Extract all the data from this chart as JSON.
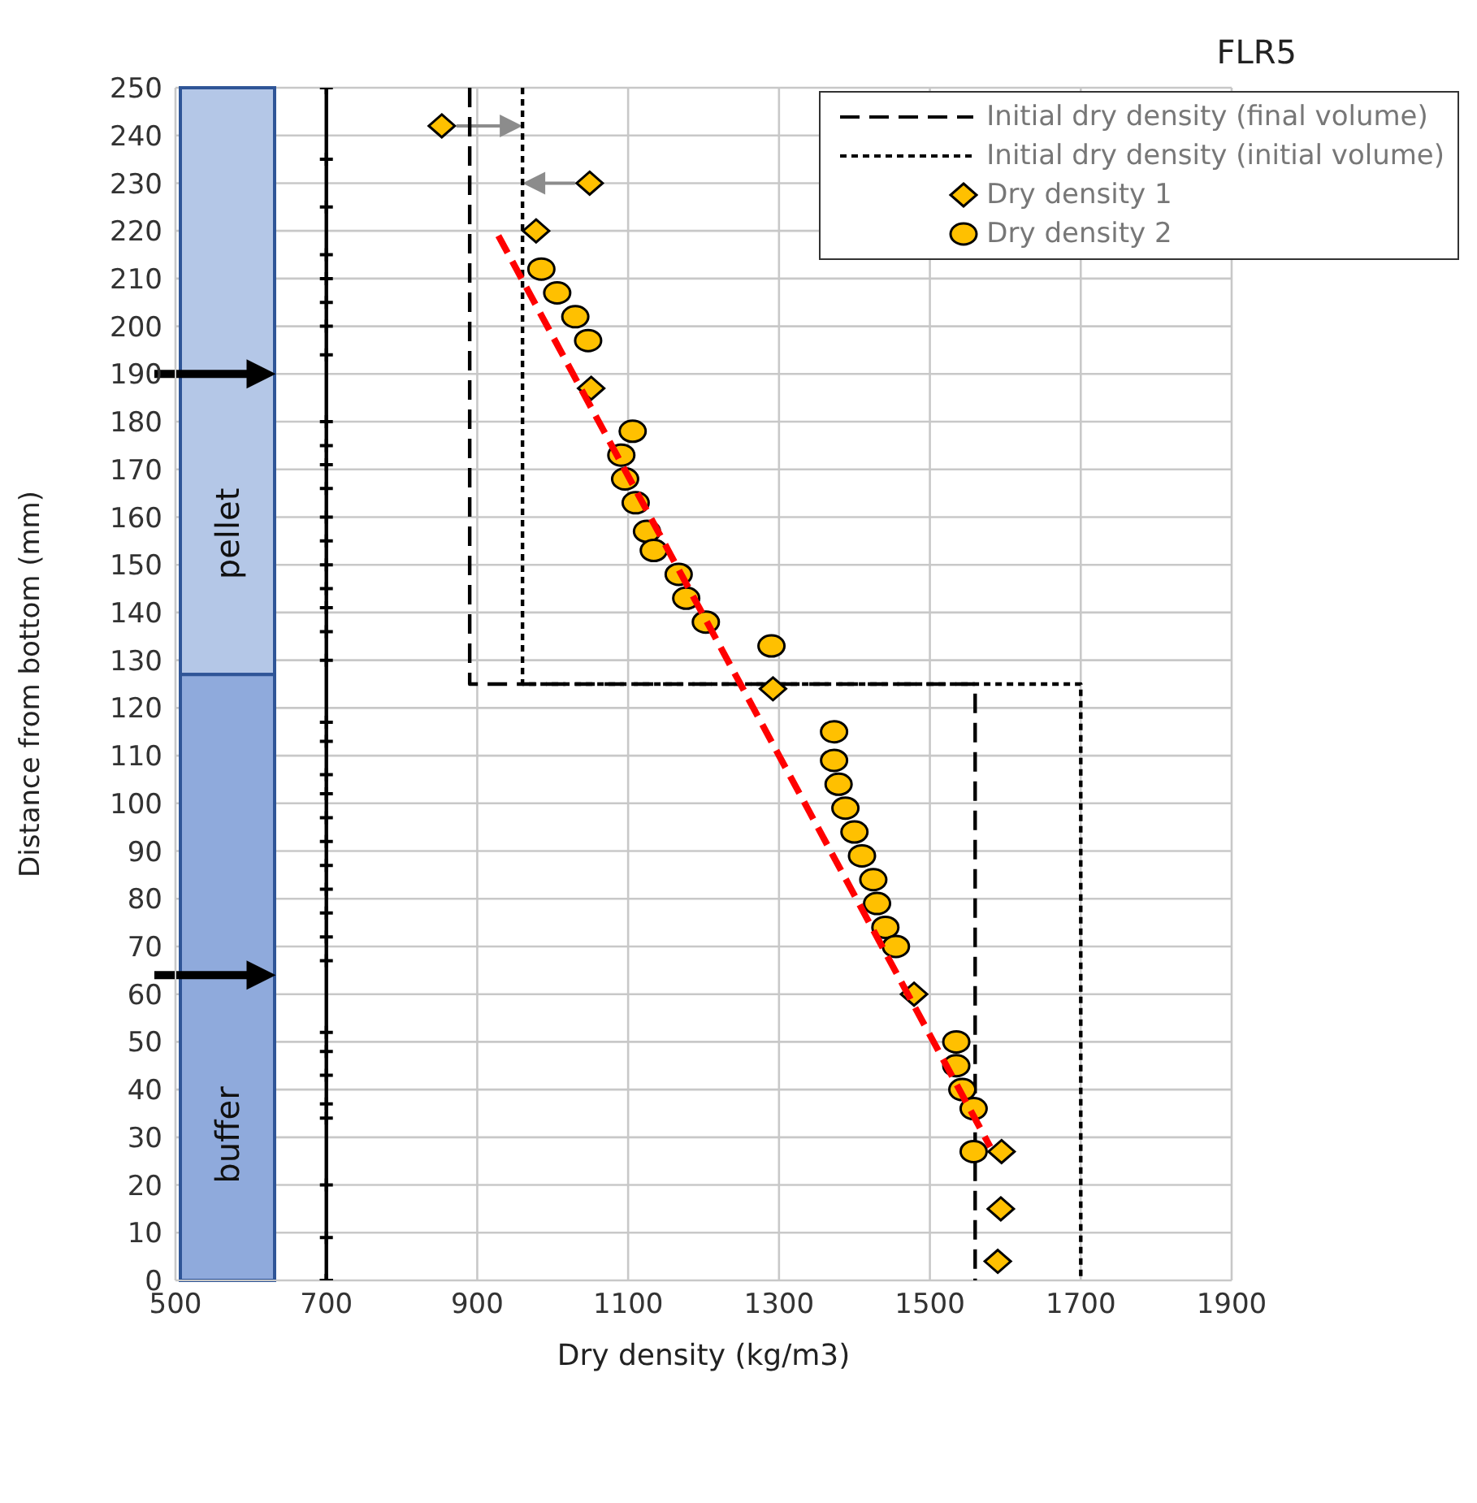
{
  "chart_data": {
    "type": "scatter",
    "title": "FLR5",
    "xlabel": "Dry density (kg/m3)",
    "ylabel": "Distance from bottom (mm)",
    "xlim": [
      500,
      1900
    ],
    "xticks": [
      500,
      700,
      900,
      1100,
      1300,
      1500,
      1700,
      1900
    ],
    "ylim": [
      0,
      250
    ],
    "yticks": [
      0,
      10,
      20,
      30,
      40,
      50,
      60,
      70,
      80,
      90,
      100,
      110,
      120,
      130,
      140,
      150,
      160,
      170,
      180,
      190,
      200,
      210,
      220,
      230,
      240,
      250
    ],
    "grid": true,
    "legend": "top right",
    "bands": [
      {
        "axis": "y",
        "from": 127,
        "to": 250,
        "label": "pellet",
        "color": "#b4c7e7"
      },
      {
        "axis": "y",
        "from": 0,
        "to": 127,
        "label": "buffer",
        "color": "#8faadc"
      }
    ],
    "series": [
      {
        "name": "Initial dry density (final volume)",
        "type": "line",
        "color": "#000000",
        "line_style": "dashed",
        "marker": "none",
        "x": [
          890,
          890,
          1560,
          1560
        ],
        "values": [
          250,
          125,
          125,
          0
        ]
      },
      {
        "name": "Initial dry density (initial volume)",
        "type": "line",
        "color": "#000000",
        "line_style": "dotted",
        "marker": "none",
        "x": [
          960,
          960,
          1700,
          1700
        ],
        "values": [
          250,
          125,
          125,
          0
        ]
      },
      {
        "name": "Dry density 1",
        "type": "scatter",
        "color": "#ffc000",
        "marker": "diamond",
        "x": [
          853,
          1049,
          978,
          1051,
          1292,
          1479,
          1595,
          1594,
          1590
        ],
        "values": [
          242,
          230,
          220,
          187,
          124,
          60,
          27,
          15,
          4
        ]
      },
      {
        "name": "Dry density 2",
        "type": "scatter",
        "color": "#ffc000",
        "marker": "circle",
        "x": [
          985,
          1006,
          1030,
          1047,
          1106,
          1091,
          1096,
          1110,
          1125,
          1134,
          1167,
          1177,
          1203,
          1290,
          1373,
          1373,
          1379,
          1388,
          1400,
          1410,
          1425,
          1430,
          1441,
          1455,
          1535,
          1535,
          1543,
          1558,
          1558
        ],
        "values": [
          212,
          207,
          202,
          197,
          178,
          173,
          168,
          163,
          157,
          153,
          148,
          143,
          138,
          133,
          115,
          109,
          104,
          99,
          94,
          89,
          84,
          79,
          74,
          70,
          50,
          45,
          40,
          36,
          27
        ]
      },
      {
        "type": "line",
        "color": "#ff0000",
        "line_style": "dashed",
        "marker": "none",
        "x": [
          928,
          1580
        ],
        "values": [
          219,
          28
        ]
      },
      {
        "type": "line",
        "color": "#000000",
        "line_style": "solid",
        "marker": "cross",
        "x": [
          700,
          700,
          700,
          700,
          700,
          700,
          700,
          700,
          700,
          700,
          700,
          700,
          700,
          700,
          700,
          700,
          700,
          700,
          700,
          700,
          700,
          700,
          700,
          700,
          700,
          700,
          700,
          700,
          700,
          700,
          700,
          700,
          700,
          700,
          700,
          700,
          700,
          700,
          700
        ],
        "values": [
          250,
          235,
          225,
          215,
          210,
          205,
          200,
          194,
          180,
          175,
          171,
          166,
          160,
          155,
          150,
          145,
          141,
          136,
          130,
          117,
          113,
          106,
          102,
          97,
          92,
          87,
          82,
          77,
          72,
          67,
          52,
          48,
          43,
          37,
          34,
          20,
          9,
          0,
          0
        ]
      }
    ]
  }
}
